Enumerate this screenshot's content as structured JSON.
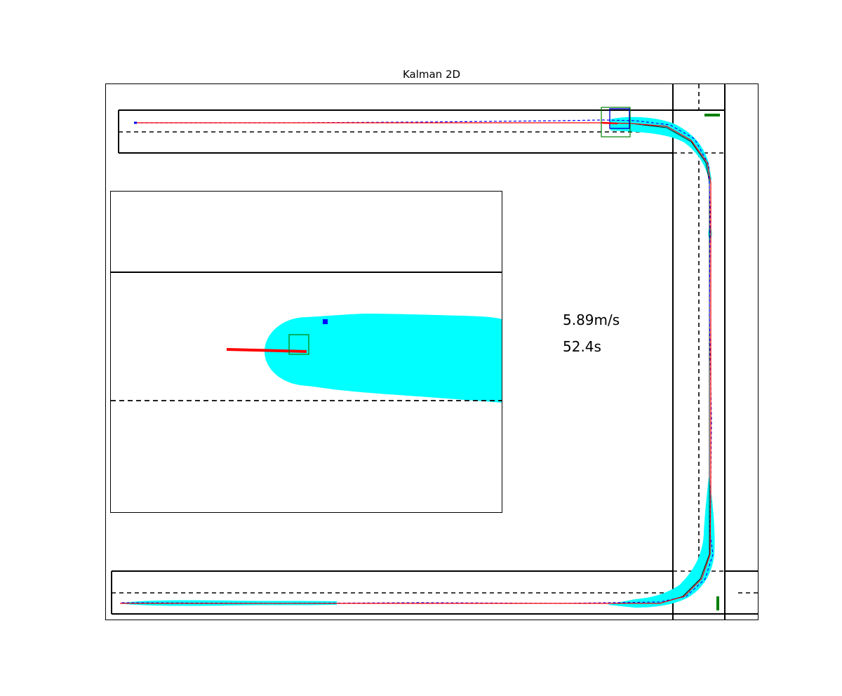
{
  "chart_data": {
    "type": "line",
    "title": "Kalman 2D",
    "readouts": {
      "speed": "5.89m/s",
      "time": "52.4s"
    },
    "colors": {
      "uncertainty": "#00ffff",
      "estimate": "#ff0000",
      "measurement": "#0000ff",
      "truth": "#000000",
      "vehicle_box": "#008000"
    },
    "series": [
      {
        "name": "estimate",
        "style": "solid",
        "color": "#ff0000",
        "points": [
          [
            193,
            175
          ],
          [
            400,
            175
          ],
          [
            600,
            175
          ],
          [
            857,
            175
          ],
          [
            900,
            176
          ],
          [
            950,
            180
          ],
          [
            985,
            200
          ],
          [
            1008,
            232
          ],
          [
            1013,
            260
          ],
          [
            1013,
            400
          ],
          [
            1013,
            600
          ],
          [
            1013,
            700
          ],
          [
            1012,
            790
          ],
          [
            1000,
            825
          ],
          [
            975,
            850
          ],
          [
            940,
            860
          ],
          [
            800,
            860
          ],
          [
            600,
            860
          ],
          [
            400,
            860
          ],
          [
            171,
            860
          ]
        ]
      },
      {
        "name": "measurement",
        "style": "dashed",
        "color": "#0000ff",
        "points": [
          [
            193,
            175
          ],
          [
            400,
            175
          ],
          [
            600,
            174
          ],
          [
            800,
            172
          ],
          [
            860,
            171
          ],
          [
            905,
            172
          ],
          [
            955,
            178
          ],
          [
            990,
            198
          ],
          [
            1010,
            235
          ],
          [
            1012,
            300
          ],
          [
            1011,
            450
          ],
          [
            1014,
            600
          ],
          [
            1012,
            760
          ],
          [
            1016,
            790
          ],
          [
            1005,
            825
          ],
          [
            978,
            850
          ],
          [
            940,
            858
          ],
          [
            800,
            860
          ],
          [
            600,
            859
          ],
          [
            400,
            860
          ],
          [
            171,
            859
          ]
        ]
      },
      {
        "name": "truth",
        "style": "solid",
        "color": "#000000",
        "points": [
          [
            193,
            175
          ],
          [
            857,
            175
          ],
          [
            900,
            176
          ],
          [
            950,
            182
          ],
          [
            985,
            202
          ],
          [
            1006,
            232
          ],
          [
            1011,
            260
          ],
          [
            1011,
            790
          ],
          [
            998,
            825
          ],
          [
            973,
            850
          ],
          [
            940,
            860
          ],
          [
            171,
            860
          ]
        ]
      }
    ],
    "zoom_inset": {
      "estimate_segment": [
        [
          323,
          498
        ],
        [
          437,
          501
        ]
      ],
      "measurement_marker": [
        463,
        458
      ],
      "vehicle_box": [
        [
          412,
          477
        ],
        [
          440,
          505
        ]
      ]
    }
  }
}
